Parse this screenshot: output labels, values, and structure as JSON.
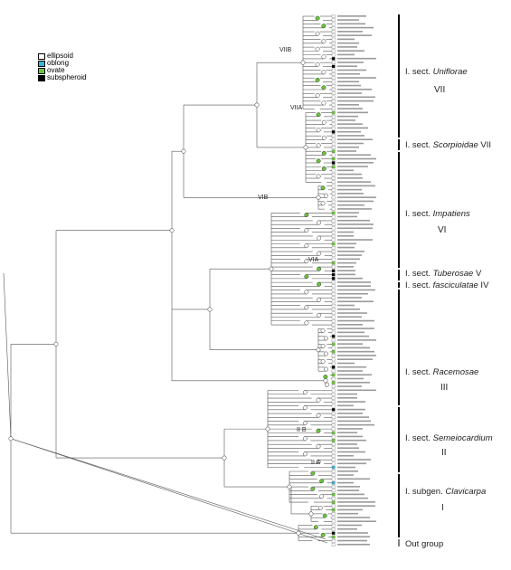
{
  "legend": [
    {
      "label": "ellipsoid",
      "color": "#ffffff"
    },
    {
      "label": "oblong",
      "color": "#38b6d8"
    },
    {
      "label": "ovate",
      "color": "#6cc63a"
    },
    {
      "label": "subspheroid",
      "color": "#000000"
    }
  ],
  "sections": [
    {
      "prefix": "I. sect. ",
      "name": "Uniflorae",
      "suffix": "",
      "roman": "VII"
    },
    {
      "prefix": "I. sect. ",
      "name": "Scorpioidae",
      "suffix": " VII",
      "roman": ""
    },
    {
      "prefix": "I. sect. ",
      "name": "Impatiens",
      "suffix": "",
      "roman": "VI"
    },
    {
      "prefix": "I. sect. ",
      "name": "Tuberosae",
      "suffix": " V",
      "roman": ""
    },
    {
      "prefix": "I. sect. ",
      "name": "fasciculatae",
      "suffix": " IV",
      "roman": ""
    },
    {
      "prefix": "I. sect. ",
      "name": "Racemosae",
      "suffix": "",
      "roman": "III"
    },
    {
      "prefix": "I. sect. ",
      "name": "Semeiocardium",
      "suffix": "",
      "roman": "II"
    },
    {
      "prefix": "I. subgen. ",
      "name": "Clavicarpa",
      "suffix": "",
      "roman": "I"
    }
  ],
  "outgroup_label": "Out group",
  "node_labels": [
    "VIIB",
    "VIIA",
    "VIB",
    "VIA",
    "II B",
    "II A"
  ]
}
